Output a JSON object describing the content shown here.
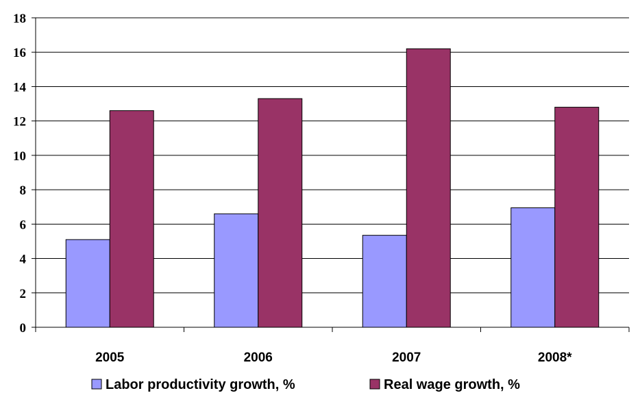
{
  "chart_data": {
    "type": "bar",
    "title": "",
    "xlabel": "",
    "ylabel": "",
    "categories": [
      "2005",
      "2006",
      "2007",
      "2008*"
    ],
    "series": [
      {
        "name": "Labor productivity growth, %",
        "values": [
          5.1,
          6.6,
          5.35,
          6.95
        ],
        "color": "#9999FF"
      },
      {
        "name": "Real wage growth, %",
        "values": [
          12.6,
          13.3,
          16.2,
          12.8
        ],
        "color": "#993366"
      }
    ],
    "ylim": [
      0,
      18
    ],
    "yticks": [
      0,
      2,
      4,
      6,
      8,
      10,
      12,
      14,
      16,
      18
    ],
    "grid": true,
    "legend_position": "bottom"
  }
}
